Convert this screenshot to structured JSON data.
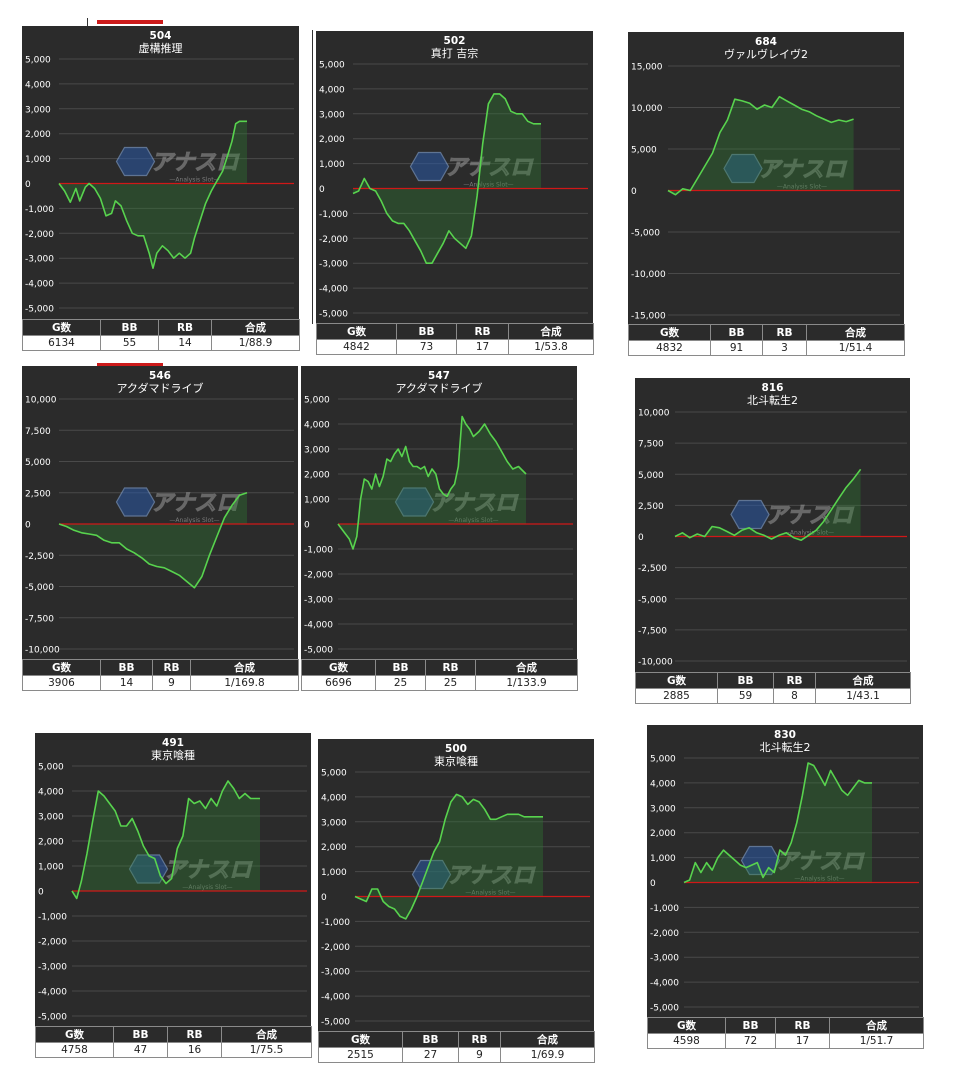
{
  "stat_headers": [
    "G数",
    "BB",
    "RB",
    "合成"
  ],
  "watermark": {
    "brand": "アナスロ",
    "sub": "—Analysis Slot—"
  },
  "panels": [
    {
      "machine_no": "504",
      "name": "虚構推理",
      "stats": [
        "6134",
        "55",
        "14",
        "1/88.9"
      ]
    },
    {
      "machine_no": "502",
      "name": "真打 吉宗",
      "stats": [
        "4842",
        "73",
        "17",
        "1/53.8"
      ]
    },
    {
      "machine_no": "684",
      "name": "ヴァルヴレイヴ2",
      "stats": [
        "4832",
        "91",
        "3",
        "1/51.4"
      ]
    },
    {
      "machine_no": "546",
      "name": "アクダマドライブ",
      "stats": [
        "3906",
        "14",
        "9",
        "1/169.8"
      ]
    },
    {
      "machine_no": "547",
      "name": "アクダマドライブ",
      "stats": [
        "6696",
        "25",
        "25",
        "1/133.9"
      ]
    },
    {
      "machine_no": "816",
      "name": "北斗転生2",
      "stats": [
        "2885",
        "59",
        "8",
        "1/43.1"
      ]
    },
    {
      "machine_no": "491",
      "name": "東京喰種",
      "stats": [
        "4758",
        "47",
        "16",
        "1/75.5"
      ]
    },
    {
      "machine_no": "500",
      "name": "東京喰種",
      "stats": [
        "2515",
        "27",
        "9",
        "1/69.9"
      ]
    },
    {
      "machine_no": "830",
      "name": "北斗転生2",
      "stats": [
        "4598",
        "72",
        "17",
        "1/51.7"
      ]
    }
  ],
  "chart_data": [
    {
      "type": "area",
      "title": "504\n虚構推理",
      "ylim": [
        -5000,
        5000
      ],
      "yticks": [
        "5,000",
        "4,000",
        "3,000",
        "2,000",
        "1,000",
        "0",
        "-1,000",
        "-2,000",
        "-3,000",
        "-4,000",
        "-5,000"
      ],
      "x": [
        0,
        0.03,
        0.06,
        0.09,
        0.11,
        0.14,
        0.16,
        0.19,
        0.22,
        0.25,
        0.28,
        0.3,
        0.33,
        0.36,
        0.39,
        0.42,
        0.45,
        0.48,
        0.5,
        0.52,
        0.55,
        0.58,
        0.61,
        0.64,
        0.67,
        0.7,
        0.72,
        0.75,
        0.78,
        0.81,
        0.84,
        0.87,
        0.9,
        0.92,
        0.94,
        0.96,
        0.98,
        1.0
      ],
      "y": [
        0,
        -300,
        -750,
        -200,
        -700,
        -150,
        0,
        -200,
        -600,
        -1300,
        -1200,
        -700,
        -900,
        -1500,
        -2000,
        -2100,
        -2100,
        -2800,
        -3400,
        -2800,
        -2500,
        -2700,
        -3000,
        -2800,
        -3000,
        -2800,
        -2200,
        -1500,
        -800,
        -300,
        100,
        500,
        1200,
        1700,
        2400,
        2500,
        2500,
        2500
      ]
    },
    {
      "type": "area",
      "title": "502\n真打 吉宗",
      "ylim": [
        -5000,
        5000
      ],
      "yticks": [
        "5,000",
        "4,000",
        "3,000",
        "2,000",
        "1,000",
        "0",
        "-1,000",
        "-2,000",
        "-3,000",
        "-4,000",
        "-5,000"
      ],
      "x": [
        0,
        0.03,
        0.06,
        0.09,
        0.12,
        0.15,
        0.18,
        0.21,
        0.24,
        0.27,
        0.3,
        0.33,
        0.36,
        0.39,
        0.42,
        0.45,
        0.48,
        0.51,
        0.54,
        0.57,
        0.6,
        0.63,
        0.66,
        0.69,
        0.72,
        0.75,
        0.78,
        0.81,
        0.84,
        0.87,
        0.9,
        0.93,
        0.96,
        0.98,
        1.0
      ],
      "y": [
        -200,
        -100,
        400,
        0,
        -100,
        -500,
        -1000,
        -1300,
        -1400,
        -1400,
        -1700,
        -2100,
        -2500,
        -3000,
        -3000,
        -2600,
        -2200,
        -1700,
        -2000,
        -2200,
        -2400,
        -1900,
        -300,
        1800,
        3400,
        3800,
        3800,
        3600,
        3100,
        3000,
        3000,
        2700,
        2600,
        2600,
        2600
      ]
    },
    {
      "type": "area",
      "title": "684\nヴァルヴレイヴ2",
      "ylim": [
        -15000,
        15000
      ],
      "yticks": [
        "15,000",
        "10,000",
        "5,000",
        "0",
        "-5,000",
        "-10,000",
        "-15,000"
      ],
      "x": [
        0,
        0.04,
        0.08,
        0.12,
        0.16,
        0.2,
        0.24,
        0.28,
        0.32,
        0.36,
        0.4,
        0.44,
        0.48,
        0.52,
        0.56,
        0.6,
        0.64,
        0.68,
        0.72,
        0.76,
        0.8,
        0.84,
        0.88,
        0.92,
        0.96,
        1.0
      ],
      "y": [
        0,
        -500,
        200,
        0,
        1500,
        3000,
        4500,
        7000,
        8500,
        11000,
        10800,
        10500,
        9800,
        10300,
        10000,
        11300,
        10800,
        10300,
        9800,
        9500,
        9000,
        8600,
        8200,
        8500,
        8300,
        8600
      ]
    },
    {
      "type": "area",
      "title": "546\nアクダマドライブ",
      "ylim": [
        -10000,
        10000
      ],
      "yticks": [
        "10,000",
        "7,500",
        "5,000",
        "2,500",
        "0",
        "-2,500",
        "-5,000",
        "-7,500",
        "-10,000"
      ],
      "x": [
        0,
        0.04,
        0.08,
        0.12,
        0.16,
        0.2,
        0.24,
        0.28,
        0.32,
        0.36,
        0.4,
        0.44,
        0.48,
        0.52,
        0.56,
        0.6,
        0.64,
        0.68,
        0.72,
        0.76,
        0.8,
        0.84,
        0.88,
        0.92,
        0.96,
        1.0
      ],
      "y": [
        0,
        -200,
        -500,
        -700,
        -800,
        -900,
        -1300,
        -1500,
        -1500,
        -2000,
        -2300,
        -2700,
        -3200,
        -3400,
        -3500,
        -3800,
        -4100,
        -4600,
        -5100,
        -4200,
        -2500,
        -1000,
        500,
        1500,
        2300,
        2500
      ]
    },
    {
      "type": "area",
      "title": "547\nアクダマドライブ",
      "ylim": [
        -5000,
        5000
      ],
      "yticks": [
        "5,000",
        "4,000",
        "3,000",
        "2,000",
        "1,000",
        "0",
        "-1,000",
        "-2,000",
        "-3,000",
        "-4,000",
        "-5,000"
      ],
      "x": [
        0,
        0.03,
        0.06,
        0.08,
        0.1,
        0.12,
        0.14,
        0.16,
        0.18,
        0.2,
        0.22,
        0.24,
        0.26,
        0.28,
        0.3,
        0.32,
        0.34,
        0.36,
        0.38,
        0.4,
        0.42,
        0.44,
        0.46,
        0.48,
        0.5,
        0.52,
        0.54,
        0.56,
        0.58,
        0.6,
        0.62,
        0.64,
        0.66,
        0.68,
        0.7,
        0.72,
        0.75,
        0.78,
        0.81,
        0.84,
        0.87,
        0.9,
        0.93,
        0.96,
        1.0
      ],
      "y": [
        0,
        -300,
        -600,
        -1000,
        -500,
        1000,
        1800,
        1700,
        1400,
        2000,
        1500,
        1900,
        2600,
        2500,
        2800,
        3000,
        2700,
        3100,
        2500,
        2300,
        2300,
        2200,
        2300,
        1900,
        2200,
        2000,
        1400,
        1200,
        1100,
        1400,
        1600,
        2300,
        4300,
        4000,
        3800,
        3500,
        3700,
        4000,
        3600,
        3300,
        2900,
        2500,
        2200,
        2300,
        2000
      ]
    },
    {
      "type": "area",
      "title": "816\n北斗転生2",
      "ylim": [
        -10000,
        10000
      ],
      "yticks": [
        "10,000",
        "7,500",
        "5,000",
        "2,500",
        "0",
        "-2,500",
        "-5,000",
        "-7,500",
        "-10,000"
      ],
      "x": [
        0,
        0.04,
        0.08,
        0.12,
        0.16,
        0.2,
        0.24,
        0.28,
        0.32,
        0.36,
        0.4,
        0.44,
        0.48,
        0.52,
        0.56,
        0.6,
        0.64,
        0.68,
        0.72,
        0.76,
        0.8,
        0.84,
        0.88,
        0.92,
        0.96,
        1.0
      ],
      "y": [
        0,
        300,
        -100,
        200,
        0,
        800,
        700,
        400,
        100,
        500,
        700,
        300,
        100,
        -200,
        100,
        300,
        -100,
        -300,
        100,
        500,
        1200,
        2100,
        3000,
        3900,
        4600,
        5400
      ]
    },
    {
      "type": "area",
      "title": "491\n東京喰種",
      "ylim": [
        -5000,
        5000
      ],
      "yticks": [
        "5,000",
        "4,000",
        "3,000",
        "2,000",
        "1,000",
        "0",
        "-1,000",
        "-2,000",
        "-3,000",
        "-4,000",
        "-5,000"
      ],
      "x": [
        0,
        0.025,
        0.05,
        0.08,
        0.11,
        0.14,
        0.17,
        0.2,
        0.23,
        0.26,
        0.29,
        0.32,
        0.35,
        0.38,
        0.41,
        0.44,
        0.47,
        0.5,
        0.53,
        0.56,
        0.59,
        0.62,
        0.65,
        0.68,
        0.71,
        0.74,
        0.77,
        0.8,
        0.83,
        0.86,
        0.89,
        0.92,
        0.95,
        0.98,
        1.0
      ],
      "y": [
        0,
        -300,
        400,
        1500,
        2800,
        4000,
        3800,
        3500,
        3200,
        2600,
        2600,
        2900,
        2400,
        1800,
        1400,
        1300,
        600,
        300,
        500,
        1700,
        2200,
        3700,
        3500,
        3600,
        3300,
        3700,
        3400,
        4000,
        4400,
        4100,
        3700,
        3900,
        3700,
        3700,
        3700
      ]
    },
    {
      "type": "area",
      "title": "500\n東京喰種",
      "ylim": [
        -5000,
        5000
      ],
      "yticks": [
        "5,000",
        "4,000",
        "3,000",
        "2,000",
        "1,000",
        "0",
        "-1,000",
        "-2,000",
        "-3,000",
        "-4,000",
        "-5,000"
      ],
      "x": [
        0,
        0.03,
        0.06,
        0.09,
        0.12,
        0.15,
        0.18,
        0.21,
        0.24,
        0.27,
        0.3,
        0.33,
        0.36,
        0.39,
        0.42,
        0.45,
        0.48,
        0.51,
        0.54,
        0.57,
        0.6,
        0.63,
        0.66,
        0.69,
        0.72,
        0.75,
        0.78,
        0.81,
        0.84,
        0.87,
        0.9,
        0.93,
        0.96,
        0.98,
        1.0
      ],
      "y": [
        0,
        -100,
        -200,
        300,
        300,
        -200,
        -400,
        -500,
        -800,
        -900,
        -500,
        0,
        600,
        1200,
        1800,
        2200,
        3100,
        3800,
        4100,
        4000,
        3700,
        3900,
        3800,
        3500,
        3100,
        3100,
        3200,
        3300,
        3300,
        3300,
        3200,
        3200,
        3200,
        3200,
        3200
      ]
    },
    {
      "type": "area",
      "title": "830\n北斗転生2",
      "ylim": [
        -5000,
        5000
      ],
      "yticks": [
        "5,000",
        "4,000",
        "3,000",
        "2,000",
        "1,000",
        "0",
        "-1,000",
        "-2,000",
        "-3,000",
        "-4,000",
        "-5,000"
      ],
      "x": [
        0,
        0.03,
        0.06,
        0.09,
        0.12,
        0.15,
        0.18,
        0.21,
        0.24,
        0.27,
        0.3,
        0.33,
        0.36,
        0.39,
        0.42,
        0.45,
        0.48,
        0.51,
        0.54,
        0.57,
        0.6,
        0.63,
        0.66,
        0.69,
        0.72,
        0.75,
        0.78,
        0.81,
        0.84,
        0.87,
        0.9,
        0.93,
        0.96,
        1.0
      ],
      "y": [
        0,
        100,
        800,
        400,
        800,
        500,
        1000,
        1300,
        1100,
        900,
        700,
        600,
        700,
        800,
        200,
        600,
        400,
        1300,
        1100,
        1600,
        2400,
        3500,
        4800,
        4700,
        4300,
        3900,
        4500,
        4100,
        3700,
        3500,
        3800,
        4100,
        4000,
        4000
      ]
    }
  ]
}
